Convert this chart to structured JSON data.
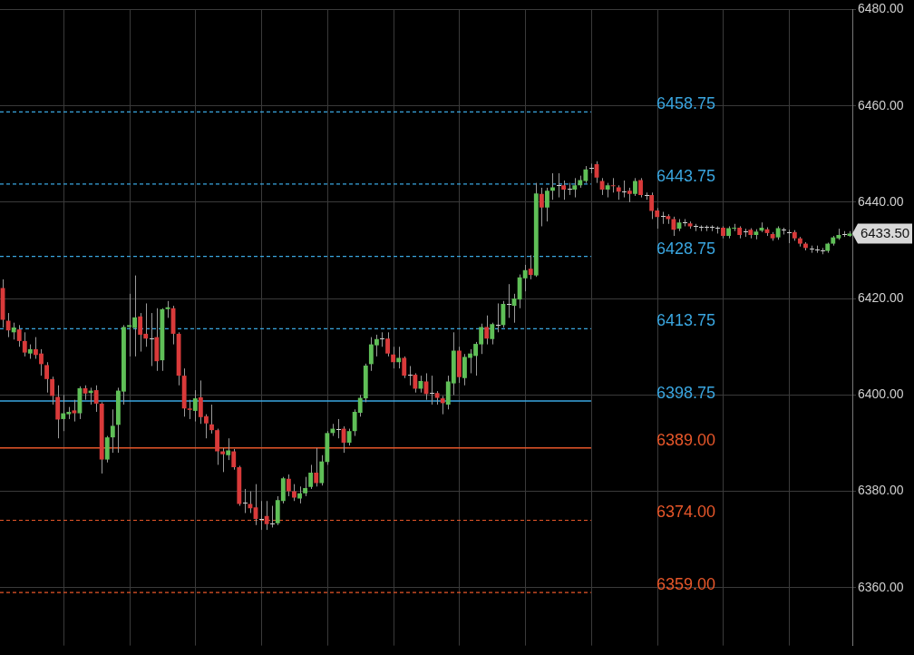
{
  "chart_data": {
    "type": "candlestick",
    "categories": [
      null,
      null,
      null,
      null,
      null,
      null,
      null,
      null,
      null,
      null,
      null,
      null,
      null,
      null,
      null,
      null,
      null,
      null,
      null,
      null,
      null,
      null,
      null,
      null,
      null,
      null,
      null,
      null,
      null,
      null,
      null,
      null,
      null,
      null,
      null,
      null,
      null,
      null,
      null,
      null,
      null,
      null,
      null,
      null,
      null,
      null,
      null,
      null,
      null,
      null,
      null,
      null,
      null,
      null,
      null,
      null,
      null,
      null,
      null,
      null,
      null,
      null,
      null,
      null,
      null,
      null,
      null,
      null,
      null,
      null,
      null,
      null,
      null,
      null,
      null,
      null,
      null,
      null,
      null,
      null,
      null,
      null,
      null,
      null,
      null,
      null,
      null,
      null,
      null,
      null,
      null,
      null,
      null,
      null,
      null,
      null,
      null,
      null,
      null,
      null,
      null,
      null,
      null,
      null,
      null,
      null,
      null,
      null,
      null,
      null,
      null,
      null,
      null,
      null,
      null,
      null,
      null,
      null,
      null,
      null,
      null,
      null,
      null,
      null,
      null,
      null,
      null,
      null,
      null,
      null,
      null,
      null,
      null,
      null,
      null,
      null,
      null,
      null,
      null,
      null,
      null,
      null,
      null,
      null,
      null,
      null,
      null,
      null,
      null,
      null,
      null,
      null,
      null,
      null,
      null
    ],
    "ohlc": [
      [
        6422.2,
        6424,
        6414,
        6415.6
      ],
      [
        6415.4,
        6417,
        6412,
        6413.4
      ],
      [
        6413.0,
        6415,
        6411.5,
        6414.0
      ],
      [
        6413.6,
        6414.5,
        6410,
        6411.2
      ],
      [
        6411.2,
        6413,
        6408,
        6408.8
      ],
      [
        6408.6,
        6410.5,
        6407.5,
        6409.5
      ],
      [
        6409.5,
        6412,
        6407.5,
        6408.3
      ],
      [
        6408.6,
        6409.5,
        6404,
        6406.4
      ],
      [
        6406.2,
        6406.8,
        6400.5,
        6403.3
      ],
      [
        6403.3,
        6403.8,
        6398,
        6399.8
      ],
      [
        6399.6,
        6402,
        6391,
        6394.9
      ],
      [
        6395,
        6400,
        6392.5,
        6396.2
      ],
      [
        6396,
        6397.5,
        6395,
        6396.5
      ],
      [
        6396.8,
        6399,
        6394.5,
        6396.2
      ],
      [
        6396.2,
        6401.8,
        6395,
        6401.4
      ],
      [
        6401.4,
        6402,
        6399,
        6400.3
      ],
      [
        6400.4,
        6401.5,
        6398,
        6400.9
      ],
      [
        6401,
        6402,
        6396.5,
        6398.2
      ],
      [
        6398.2,
        6398.5,
        6383.7,
        6386.6
      ],
      [
        6386.6,
        6391.5,
        6386,
        6391.2
      ],
      [
        6391.2,
        6397,
        6388,
        6393.6
      ],
      [
        6393.8,
        6401.5,
        6388,
        6400.9
      ],
      [
        6400.7,
        6414.5,
        6398,
        6414.1
      ],
      [
        6414.1,
        6421,
        6408,
        6414.5
      ],
      [
        6413.9,
        6424.8,
        6408,
        6416.1
      ],
      [
        6416.3,
        6417,
        6409,
        6412.5
      ],
      [
        6412.7,
        6419,
        6410,
        6411.7
      ],
      [
        6411.7,
        6417,
        6406,
        6411.7
      ],
      [
        6412,
        6418,
        6405,
        6407
      ],
      [
        6407.2,
        6418,
        6405,
        6417.8
      ],
      [
        6417.8,
        6419.5,
        6416,
        6418.2
      ],
      [
        6418,
        6418.5,
        6410.5,
        6412.7
      ],
      [
        6412.7,
        6413,
        6402,
        6404
      ],
      [
        6404,
        6405.5,
        6395.5,
        6397.2
      ],
      [
        6397.2,
        6399,
        6395,
        6396.9
      ],
      [
        6396.7,
        6401,
        6394.5,
        6399.3
      ],
      [
        6399.5,
        6403,
        6394,
        6395.4
      ],
      [
        6395.6,
        6396,
        6391,
        6394.1
      ],
      [
        6393.9,
        6398,
        6392,
        6392.7
      ],
      [
        6392.7,
        6393,
        6385.5,
        6388.3
      ],
      [
        6388.3,
        6389,
        6384,
        6387.7
      ],
      [
        6387.5,
        6391,
        6386.5,
        6388.5
      ],
      [
        6388.3,
        6388.8,
        6384.5,
        6385
      ],
      [
        6385,
        6385.3,
        6377,
        6377.4
      ],
      [
        6377.6,
        6380.5,
        6375.5,
        6377.6
      ],
      [
        6377.4,
        6380,
        6375.5,
        6376.5
      ],
      [
        6376.7,
        6381.5,
        6373,
        6374.3
      ],
      [
        6374.3,
        6378,
        6372,
        6374.3
      ],
      [
        6374.9,
        6378,
        6372,
        6373.2
      ],
      [
        6373.4,
        6377,
        6372.5,
        6373.4
      ],
      [
        6373.4,
        6379,
        6373,
        6378.2
      ],
      [
        6378,
        6383,
        6377.5,
        6382.7
      ],
      [
        6382.6,
        6383.5,
        6379,
        6380
      ],
      [
        6380,
        6381.5,
        6378,
        6378.7
      ],
      [
        6378.5,
        6381,
        6377.5,
        6379.6
      ],
      [
        6379.6,
        6383,
        6379,
        6380.7
      ],
      [
        6380.9,
        6385.5,
        6380.5,
        6383.9
      ],
      [
        6383.9,
        6389,
        6381,
        6381.7
      ],
      [
        6381.7,
        6387.5,
        6381.2,
        6386.2
      ],
      [
        6386.1,
        6392.5,
        6385.5,
        6392.1
      ],
      [
        6392.1,
        6394,
        6391.5,
        6393
      ],
      [
        6393,
        6395,
        6391,
        6393
      ],
      [
        6393,
        6393.5,
        6388,
        6390.1
      ],
      [
        6390.1,
        6393,
        6389.5,
        6392.5
      ],
      [
        6392.5,
        6397,
        6391.5,
        6396.5
      ],
      [
        6396.3,
        6400,
        6395.5,
        6399.4
      ],
      [
        6399.3,
        6406.5,
        6398.5,
        6406.1
      ],
      [
        6406.4,
        6412,
        6405,
        6410.5
      ],
      [
        6410.3,
        6412.5,
        6408,
        6411.6
      ],
      [
        6411.7,
        6413,
        6410,
        6411.7
      ],
      [
        6411.7,
        6413,
        6408,
        6408.6
      ],
      [
        6408.4,
        6410,
        6405.5,
        6406.8
      ],
      [
        6406.8,
        6410,
        6405.5,
        6407.7
      ],
      [
        6407.7,
        6408,
        6403.5,
        6404
      ],
      [
        6404.2,
        6406,
        6402,
        6404.2
      ],
      [
        6404.2,
        6404.5,
        6400.5,
        6401.3
      ],
      [
        6401.3,
        6404,
        6400.5,
        6402.9
      ],
      [
        6402.8,
        6404.5,
        6399,
        6400.2
      ],
      [
        6400.4,
        6404,
        6398,
        6400.4
      ],
      [
        6400.4,
        6400.8,
        6398,
        6399.4
      ],
      [
        6399.3,
        6399.8,
        6396,
        6398.3
      ],
      [
        6398,
        6404,
        6397,
        6402.8
      ],
      [
        6402.4,
        6413,
        6400,
        6409.2
      ],
      [
        6409.2,
        6410,
        6402.5,
        6403.7
      ],
      [
        6403.5,
        6408.5,
        6402,
        6407.9
      ],
      [
        6407.7,
        6409.5,
        6404.5,
        6408.6
      ],
      [
        6408.1,
        6411,
        6404,
        6410.6
      ],
      [
        6410.5,
        6414.8,
        6408.5,
        6414.1
      ],
      [
        6414.1,
        6416.5,
        6410.5,
        6411.7
      ],
      [
        6411.6,
        6415,
        6410.5,
        6414.7
      ],
      [
        6414.5,
        6419,
        6413,
        6414.5
      ],
      [
        6414.5,
        6419.5,
        6414,
        6418.9
      ],
      [
        6418.9,
        6423,
        6416,
        6418.9
      ],
      [
        6418.5,
        6421,
        6415,
        6420
      ],
      [
        6419.8,
        6425,
        6418,
        6424.4
      ],
      [
        6424.2,
        6427,
        6421.5,
        6425.9
      ],
      [
        6426.2,
        6429,
        6424,
        6424.9
      ],
      [
        6424.8,
        6444,
        6424.5,
        6441.8
      ],
      [
        6441.7,
        6443,
        6435,
        6438.9
      ],
      [
        6438.9,
        6443,
        6436,
        6442.4
      ],
      [
        6442.4,
        6446,
        6440.5,
        6443.1
      ],
      [
        6443.5,
        6446,
        6441,
        6443.5
      ],
      [
        6443.5,
        6444.5,
        6440.5,
        6442.6
      ],
      [
        6442.8,
        6444,
        6441.5,
        6442.8
      ],
      [
        6442.6,
        6445,
        6441,
        6443.5
      ],
      [
        6443.5,
        6445.5,
        6443,
        6444.6
      ],
      [
        6444.4,
        6447.5,
        6444,
        6446.8
      ],
      [
        6447.2,
        6448,
        6446,
        6447.2
      ],
      [
        6447.9,
        6448.5,
        6444,
        6445.1
      ],
      [
        6444.4,
        6445,
        6441.5,
        6442.6
      ],
      [
        6442.6,
        6444,
        6441,
        6443.5
      ],
      [
        6443.5,
        6445,
        6442,
        6443.3
      ],
      [
        6443.1,
        6443.5,
        6440.5,
        6442.2
      ],
      [
        6442.2,
        6444.5,
        6441,
        6442.2
      ],
      [
        6442.4,
        6443,
        6440,
        6441.7
      ],
      [
        6441.7,
        6445,
        6441.3,
        6444.4
      ],
      [
        6444.6,
        6445,
        6441,
        6441.5
      ],
      [
        6441.5,
        6442,
        6440.5,
        6441.5
      ],
      [
        6441.5,
        6442,
        6436.5,
        6438.2
      ],
      [
        6438.3,
        6438.8,
        6434.5,
        6436.9
      ],
      [
        6437.1,
        6438,
        6435.5,
        6437.1
      ],
      [
        6437.1,
        6437.5,
        6435.5,
        6436.5
      ],
      [
        6436.5,
        6437,
        6433,
        6434.3
      ],
      [
        6434.5,
        6436.5,
        6434,
        6435.8
      ],
      [
        6435.8,
        6436.5,
        6435,
        6435.8
      ],
      [
        6435.6,
        6436,
        6434.5,
        6435
      ],
      [
        6435,
        6435.5,
        6434,
        6435
      ],
      [
        6434.9,
        6435.2,
        6434,
        6434.9
      ],
      [
        6434.9,
        6435.2,
        6434,
        6434.9
      ],
      [
        6434.9,
        6435.2,
        6434,
        6434.9
      ],
      [
        6434.7,
        6435,
        6433.5,
        6434.7
      ],
      [
        6434.7,
        6435,
        6432.5,
        6433
      ],
      [
        6433,
        6435,
        6432.5,
        6434.6
      ],
      [
        6434.5,
        6435.5,
        6434,
        6434.7
      ],
      [
        6434.7,
        6435,
        6432.5,
        6433.2
      ],
      [
        6433.9,
        6434.5,
        6432.8,
        6433.9
      ],
      [
        6434.3,
        6434.6,
        6432.5,
        6433.2
      ],
      [
        6433.2,
        6434.4,
        6432.3,
        6433.9
      ],
      [
        6434.1,
        6435.8,
        6433.8,
        6434.7
      ],
      [
        6434.4,
        6434.8,
        6433,
        6433.6
      ],
      [
        6433.4,
        6433.8,
        6432,
        6432.5
      ],
      [
        6432.7,
        6435,
        6432.2,
        6434.6
      ],
      [
        6434.3,
        6434.7,
        6433.3,
        6434.3
      ],
      [
        6433.8,
        6434.3,
        6431.5,
        6433.8
      ],
      [
        6433.8,
        6434.2,
        6432,
        6432.5
      ],
      [
        6432.5,
        6432.8,
        6430.8,
        6431.4
      ],
      [
        6431.4,
        6431.7,
        6430,
        6430.5
      ],
      [
        6430.3,
        6431,
        6429.5,
        6430.3
      ],
      [
        6430.1,
        6431,
        6429.5,
        6430.1
      ],
      [
        6430,
        6430.5,
        6429.2,
        6430
      ],
      [
        6429.9,
        6431.6,
        6429.5,
        6431.4
      ],
      [
        6431.4,
        6433,
        6431,
        6432.7
      ],
      [
        6432.5,
        6434.5,
        6432.2,
        6433.2
      ],
      [
        6433.4,
        6434,
        6432.8,
        6433.4
      ],
      [
        6433,
        6434,
        6432.8,
        6433.5
      ]
    ],
    "ylim": [
      6348,
      6480
    ],
    "yticks": [
      {
        "value": 6360,
        "label": "6360.00"
      },
      {
        "value": 6380,
        "label": "6380.00"
      },
      {
        "value": 6400,
        "label": "6400.00"
      },
      {
        "value": 6420,
        "label": "6420.00"
      },
      {
        "value": 6440,
        "label": "6440.00"
      },
      {
        "value": 6460,
        "label": "6460.00"
      },
      {
        "value": 6480,
        "label": "6480.00"
      }
    ],
    "tick_labels": "y",
    "grid": true,
    "ref_lines": [
      {
        "axis": "y",
        "value": 6458.75,
        "label": "6458.75",
        "color": "#3aa6e0",
        "line_style": "dashed"
      },
      {
        "axis": "y",
        "value": 6443.75,
        "label": "6443.75",
        "color": "#3aa6e0",
        "line_style": "dashed"
      },
      {
        "axis": "y",
        "value": 6428.75,
        "label": "6428.75",
        "color": "#3aa6e0",
        "line_style": "dashed"
      },
      {
        "axis": "y",
        "value": 6413.75,
        "label": "6413.75",
        "color": "#3aa6e0",
        "line_style": "dashed"
      },
      {
        "axis": "y",
        "value": 6398.75,
        "label": "6398.75",
        "color": "#3aa6e0",
        "line_style": "solid"
      },
      {
        "axis": "y",
        "value": 6389,
        "label": "6389.00",
        "color": "#e8572a",
        "line_style": "solid"
      },
      {
        "axis": "y",
        "value": 6374,
        "label": "6374.00",
        "color": "#e8572a",
        "line_style": "dashed"
      },
      {
        "axis": "y",
        "value": 6359,
        "label": "6359.00",
        "color": "#e8572a",
        "line_style": "dashed"
      }
    ],
    "annotations": [
      "6433.50"
    ]
  }
}
